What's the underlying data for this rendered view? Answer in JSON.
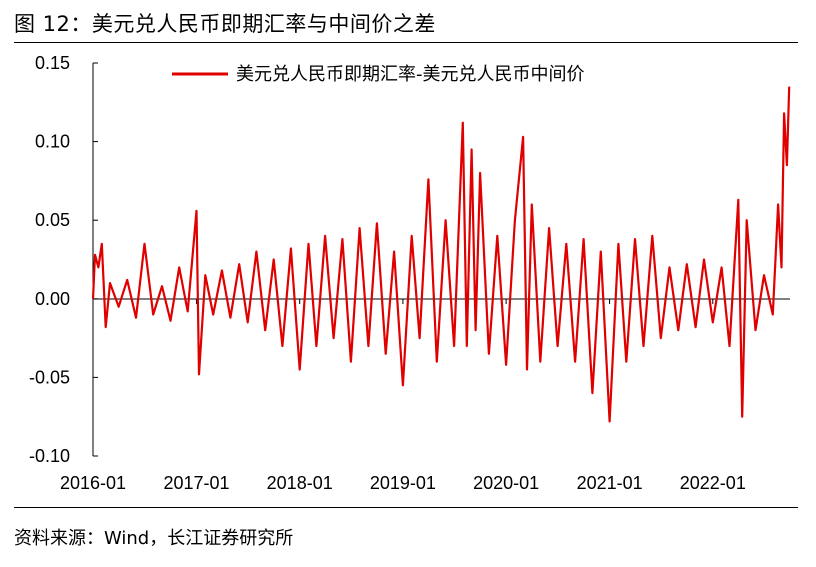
{
  "figure": {
    "title": "图 12：美元兑人民币即期汇率与中间价之差",
    "source": "资料来源：Wind，长江证券研究所"
  },
  "chart_data": {
    "type": "line",
    "title": "",
    "xlabel": "",
    "ylabel": "",
    "ylim": [
      -0.1,
      0.15
    ],
    "y_ticks": [
      "0.15",
      "0.10",
      "0.05",
      "0.00",
      "-0.05",
      "-0.10"
    ],
    "x_ticks": [
      "2016-01",
      "2017-01",
      "2018-01",
      "2019-01",
      "2020-01",
      "2021-01",
      "2022-01"
    ],
    "legend": "top-center",
    "grid": false,
    "series": [
      {
        "name": "美元兑人民币即期汇率-美元兑人民币中间价",
        "color": "#e00000",
        "points": [
          [
            "2016-01",
            0.0
          ],
          [
            "2016-01-08",
            0.028
          ],
          [
            "2016-01-20",
            0.02
          ],
          [
            "2016-02",
            0.035
          ],
          [
            "2016-02-15",
            -0.018
          ],
          [
            "2016-03",
            0.01
          ],
          [
            "2016-04",
            -0.005
          ],
          [
            "2016-05",
            0.012
          ],
          [
            "2016-06",
            -0.012
          ],
          [
            "2016-07",
            0.035
          ],
          [
            "2016-08",
            -0.01
          ],
          [
            "2016-09",
            0.008
          ],
          [
            "2016-10",
            -0.014
          ],
          [
            "2016-11",
            0.02
          ],
          [
            "2016-12",
            -0.008
          ],
          [
            "2017-01",
            0.056
          ],
          [
            "2017-01-10",
            -0.048
          ],
          [
            "2017-02",
            0.015
          ],
          [
            "2017-03",
            -0.01
          ],
          [
            "2017-04",
            0.018
          ],
          [
            "2017-05",
            -0.012
          ],
          [
            "2017-06",
            0.022
          ],
          [
            "2017-07",
            -0.015
          ],
          [
            "2017-08",
            0.03
          ],
          [
            "2017-09",
            -0.02
          ],
          [
            "2017-10",
            0.025
          ],
          [
            "2017-11",
            -0.03
          ],
          [
            "2017-12",
            0.032
          ],
          [
            "2018-01",
            -0.045
          ],
          [
            "2018-02",
            0.035
          ],
          [
            "2018-03",
            -0.03
          ],
          [
            "2018-04",
            0.04
          ],
          [
            "2018-05",
            -0.025
          ],
          [
            "2018-06",
            0.038
          ],
          [
            "2018-07",
            -0.04
          ],
          [
            "2018-08",
            0.045
          ],
          [
            "2018-09",
            -0.03
          ],
          [
            "2018-10",
            0.048
          ],
          [
            "2018-11",
            -0.035
          ],
          [
            "2018-12",
            0.03
          ],
          [
            "2019-01",
            -0.055
          ],
          [
            "2019-02",
            0.04
          ],
          [
            "2019-03",
            -0.025
          ],
          [
            "2019-04",
            0.076
          ],
          [
            "2019-05",
            -0.04
          ],
          [
            "2019-06",
            0.05
          ],
          [
            "2019-07",
            -0.03
          ],
          [
            "2019-08",
            0.112
          ],
          [
            "2019-08-15",
            -0.03
          ],
          [
            "2019-09",
            0.095
          ],
          [
            "2019-09-15",
            -0.02
          ],
          [
            "2019-10",
            0.08
          ],
          [
            "2019-11",
            -0.035
          ],
          [
            "2019-12",
            0.04
          ],
          [
            "2020-01",
            -0.042
          ],
          [
            "2020-02",
            0.05
          ],
          [
            "2020-03",
            0.103
          ],
          [
            "2020-03-15",
            -0.045
          ],
          [
            "2020-04",
            0.06
          ],
          [
            "2020-05",
            -0.04
          ],
          [
            "2020-06",
            0.045
          ],
          [
            "2020-07",
            -0.03
          ],
          [
            "2020-08",
            0.035
          ],
          [
            "2020-09",
            -0.04
          ],
          [
            "2020-10",
            0.038
          ],
          [
            "2020-11",
            -0.06
          ],
          [
            "2020-12",
            0.03
          ],
          [
            "2021-01",
            -0.078
          ],
          [
            "2021-02",
            0.035
          ],
          [
            "2021-03",
            -0.04
          ],
          [
            "2021-04",
            0.038
          ],
          [
            "2021-05",
            -0.03
          ],
          [
            "2021-06",
            0.04
          ],
          [
            "2021-07",
            -0.025
          ],
          [
            "2021-08",
            0.02
          ],
          [
            "2021-09",
            -0.02
          ],
          [
            "2021-10",
            0.022
          ],
          [
            "2021-11",
            -0.018
          ],
          [
            "2021-12",
            0.025
          ],
          [
            "2022-01",
            -0.015
          ],
          [
            "2022-02",
            0.02
          ],
          [
            "2022-03",
            -0.03
          ],
          [
            "2022-04",
            0.063
          ],
          [
            "2022-04-15",
            -0.075
          ],
          [
            "2022-05",
            0.05
          ],
          [
            "2022-06",
            -0.02
          ],
          [
            "2022-07",
            0.015
          ],
          [
            "2022-08",
            -0.01
          ],
          [
            "2022-08-20",
            0.06
          ],
          [
            "2022-09",
            0.02
          ],
          [
            "2022-09-10",
            0.118
          ],
          [
            "2022-09-20",
            0.085
          ],
          [
            "2022-09-28",
            0.135
          ]
        ]
      }
    ]
  }
}
